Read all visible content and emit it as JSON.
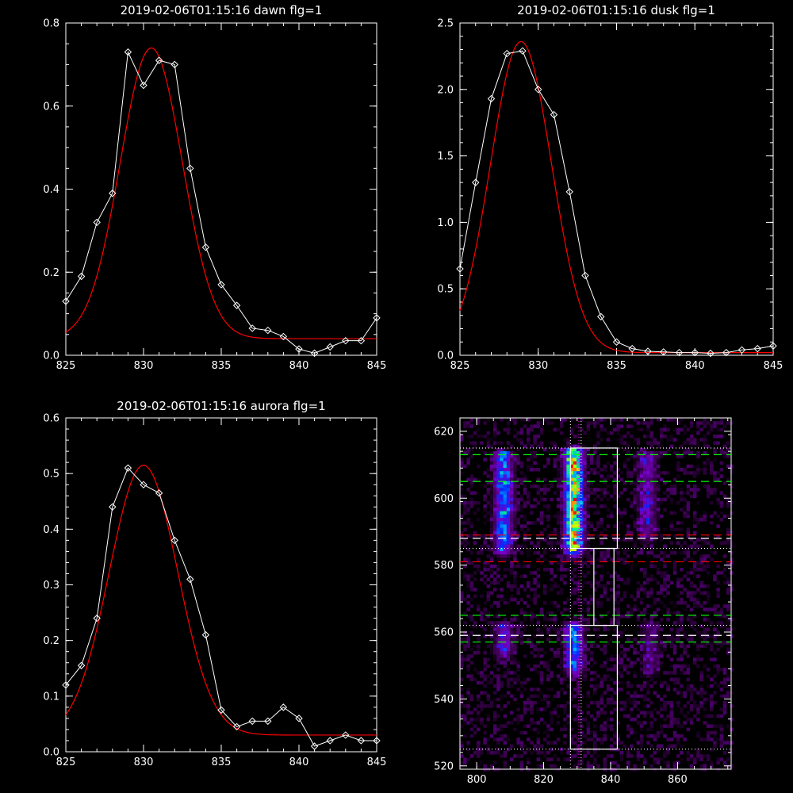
{
  "chart_data": [
    {
      "type": "line",
      "title": "2019-02-06T01:15:16 dawn flg=1",
      "xlim": [
        825,
        845
      ],
      "ylim": [
        0,
        0.8
      ],
      "xticks": [
        825,
        830,
        835,
        840,
        845
      ],
      "yticks": [
        0.0,
        0.2,
        0.4,
        0.6,
        0.8
      ],
      "ytick_labels": [
        "0.0",
        "0.2",
        "0.4",
        "0.6",
        "0.8"
      ],
      "series": [
        {
          "color": "#ffffff",
          "markers": "diamond",
          "x": [
            825,
            826,
            827,
            828,
            829,
            830,
            831,
            832,
            833,
            834,
            835,
            836,
            837,
            838,
            839,
            840,
            841,
            842,
            843,
            844,
            845
          ],
          "y": [
            0.13,
            0.19,
            0.32,
            0.39,
            0.73,
            0.65,
            0.71,
            0.7,
            0.45,
            0.26,
            0.17,
            0.12,
            0.065,
            0.06,
            0.045,
            0.015,
            0.005,
            0.02,
            0.035,
            0.035,
            0.09
          ]
        },
        {
          "color": "#ff0000",
          "gaussian": {
            "amplitude": 0.7,
            "center": 830.5,
            "sigma": 2.0,
            "offset": 0.04
          }
        }
      ]
    },
    {
      "type": "line",
      "title": "2019-02-06T01:15:16 dusk flg=1",
      "xlim": [
        825,
        845
      ],
      "ylim": [
        0,
        2.5
      ],
      "xticks": [
        825,
        830,
        835,
        840,
        845
      ],
      "yticks": [
        0.0,
        0.5,
        1.0,
        1.5,
        2.0,
        2.5
      ],
      "ytick_labels": [
        "0.0",
        "0.5",
        "1.0",
        "1.5",
        "2.0",
        "2.5"
      ],
      "series": [
        {
          "color": "#ffffff",
          "markers": "diamond",
          "x": [
            825,
            826,
            827,
            828,
            829,
            830,
            831,
            832,
            833,
            834,
            835,
            836,
            837,
            838,
            839,
            840,
            841,
            842,
            843,
            844,
            845
          ],
          "y": [
            0.65,
            1.3,
            1.93,
            2.27,
            2.29,
            2.0,
            1.81,
            1.23,
            0.6,
            0.29,
            0.1,
            0.05,
            0.03,
            0.025,
            0.02,
            0.02,
            0.015,
            0.02,
            0.04,
            0.05,
            0.07
          ]
        },
        {
          "color": "#ff0000",
          "gaussian": {
            "amplitude": 2.34,
            "center": 828.9,
            "sigma": 1.95,
            "offset": 0.02
          }
        }
      ]
    },
    {
      "type": "line",
      "title": "2019-02-06T01:15:16 aurora flg=1",
      "xlim": [
        825,
        845
      ],
      "ylim": [
        0,
        0.6
      ],
      "xticks": [
        825,
        830,
        835,
        840,
        845
      ],
      "yticks": [
        0.0,
        0.1,
        0.2,
        0.3,
        0.4,
        0.5,
        0.6
      ],
      "ytick_labels": [
        "0.0",
        "0.1",
        "0.2",
        "0.3",
        "0.4",
        "0.5",
        "0.6"
      ],
      "series": [
        {
          "color": "#ffffff",
          "markers": "diamond",
          "x": [
            825,
            826,
            827,
            828,
            829,
            830,
            831,
            832,
            833,
            834,
            835,
            836,
            837,
            838,
            839,
            840,
            841,
            842,
            843,
            844,
            845
          ],
          "y": [
            0.12,
            0.155,
            0.24,
            0.44,
            0.51,
            0.48,
            0.465,
            0.38,
            0.31,
            0.21,
            0.075,
            0.045,
            0.055,
            0.055,
            0.08,
            0.06,
            0.01,
            0.02,
            0.03,
            0.02,
            0.02
          ]
        },
        {
          "color": "#ff0000",
          "gaussian": {
            "amplitude": 0.485,
            "center": 830.0,
            "sigma": 2.2,
            "offset": 0.03
          }
        }
      ]
    },
    {
      "type": "heatmap",
      "colormap": "black-purple-blue-cyan-green-yellow-red",
      "xlim": [
        795,
        876
      ],
      "ylim": [
        519,
        624
      ],
      "xticks": [
        800,
        820,
        840,
        860
      ],
      "yticks": [
        520,
        540,
        560,
        580,
        600,
        620
      ],
      "emission_columns": [
        {
          "x": 808,
          "y_range": [
            586,
            613
          ],
          "peak": 0.55
        },
        {
          "x": 829,
          "y_range": [
            586,
            614
          ],
          "peak": 1.0
        },
        {
          "x": 851,
          "y_range": [
            590,
            613
          ],
          "peak": 0.3
        },
        {
          "x": 808,
          "y_range": [
            555,
            562
          ],
          "peak": 0.35
        },
        {
          "x": 829,
          "y_range": [
            550,
            562
          ],
          "peak": 0.55
        },
        {
          "x": 852,
          "y_range": [
            550,
            562
          ],
          "peak": 0.2
        }
      ],
      "boxes": [
        {
          "x": [
            828,
            842
          ],
          "y": [
            585,
            615
          ],
          "color": "#ffffff"
        },
        {
          "x": [
            835,
            841
          ],
          "y": [
            562,
            585
          ],
          "color": "#ffffff"
        },
        {
          "x": [
            828,
            842
          ],
          "y": [
            525,
            562
          ],
          "color": "#ffffff"
        }
      ],
      "hlines": [
        {
          "y": 615,
          "color": "#ffffff",
          "style": "dotted"
        },
        {
          "y": 613,
          "color": "#00ff00",
          "style": "dashed"
        },
        {
          "y": 605,
          "color": "#00ff00",
          "style": "dashed"
        },
        {
          "y": 589,
          "color": "#ff0000",
          "style": "dashed"
        },
        {
          "y": 588,
          "color": "#ffffff",
          "style": "dashed"
        },
        {
          "y": 585,
          "color": "#ffffff",
          "style": "dotted"
        },
        {
          "y": 581,
          "color": "#ff0000",
          "style": "dashed"
        },
        {
          "y": 565,
          "color": "#00ff00",
          "style": "dashed"
        },
        {
          "y": 562,
          "color": "#ffffff",
          "style": "dotted"
        },
        {
          "y": 559,
          "color": "#ffffff",
          "style": "dashed"
        },
        {
          "y": 557,
          "color": "#00ff00",
          "style": "dashed"
        },
        {
          "y": 525,
          "color": "#ffffff",
          "style": "dotted"
        }
      ],
      "vlines": [
        {
          "x": 828.0,
          "color": "#ffffff",
          "style": "dotted"
        },
        {
          "x": 830.5,
          "color": "#ff00ff",
          "style": "dotted"
        },
        {
          "x": 831.2,
          "color": "#ffffff",
          "style": "dotted"
        }
      ]
    }
  ]
}
